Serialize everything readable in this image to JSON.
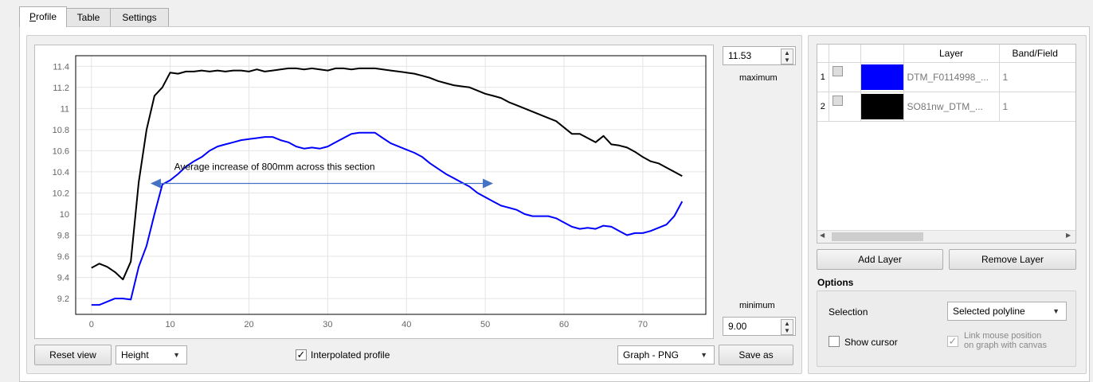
{
  "tabs": [
    {
      "label_prefix": "P",
      "label_rest": "rofile",
      "active": true
    },
    {
      "label": "Table",
      "active": false
    },
    {
      "label": "Settings",
      "active": false
    }
  ],
  "plot": {
    "y_ticks": [
      "11.4",
      "11.2",
      "11",
      "10.8",
      "10.6",
      "10.4",
      "10.2",
      "10",
      "9.8",
      "9.6",
      "9.4",
      "9.2"
    ],
    "x_ticks": [
      "0",
      "10",
      "20",
      "30",
      "40",
      "50",
      "60",
      "70"
    ],
    "annotation": "Average increase of 800mm across this section",
    "colors": {
      "series1": "#0000ff",
      "series2": "#000000",
      "arrow": "#4472c4"
    },
    "xlim": [
      -2,
      78
    ],
    "ylim": [
      9.05,
      11.5
    ]
  },
  "chart_data": {
    "type": "line",
    "ylim": [
      9.05,
      11.5
    ],
    "xlim": [
      -2,
      78
    ],
    "annotations": [
      "Average increase of 800mm across this section"
    ],
    "series": [
      {
        "name": "DTM_F0114998_...",
        "color": "#0000ff",
        "x": [
          0,
          1,
          2,
          3,
          4,
          5,
          6,
          7,
          8,
          9,
          10,
          11,
          12,
          13,
          14,
          15,
          16,
          17,
          18,
          19,
          20,
          21,
          22,
          23,
          24,
          25,
          26,
          27,
          28,
          29,
          30,
          31,
          32,
          33,
          34,
          35,
          36,
          37,
          38,
          39,
          40,
          41,
          42,
          43,
          44,
          45,
          46,
          47,
          48,
          49,
          50,
          51,
          52,
          53,
          54,
          55,
          56,
          57,
          58,
          59,
          60,
          61,
          62,
          63,
          64,
          65,
          66,
          67,
          68,
          69,
          70,
          71,
          72,
          73,
          74,
          75
        ],
        "y": [
          9.14,
          9.14,
          9.17,
          9.2,
          9.2,
          9.19,
          9.5,
          9.7,
          10.0,
          10.28,
          10.32,
          10.38,
          10.45,
          10.5,
          10.54,
          10.6,
          10.64,
          10.66,
          10.68,
          10.7,
          10.71,
          10.72,
          10.73,
          10.73,
          10.7,
          10.68,
          10.64,
          10.62,
          10.63,
          10.62,
          10.64,
          10.68,
          10.72,
          10.76,
          10.77,
          10.77,
          10.77,
          10.72,
          10.67,
          10.64,
          10.61,
          10.58,
          10.54,
          10.48,
          10.43,
          10.38,
          10.34,
          10.3,
          10.26,
          10.2,
          10.16,
          10.12,
          10.08,
          10.06,
          10.04,
          10.0,
          9.98,
          9.98,
          9.98,
          9.96,
          9.92,
          9.88,
          9.86,
          9.87,
          9.86,
          9.89,
          9.88,
          9.84,
          9.8,
          9.82,
          9.82,
          9.84,
          9.87,
          9.9,
          9.98,
          10.12
        ]
      },
      {
        "name": "SO81nw_DTM_...",
        "color": "#000000",
        "x": [
          0,
          1,
          2,
          3,
          4,
          5,
          6,
          7,
          8,
          9,
          10,
          11,
          12,
          13,
          14,
          15,
          16,
          17,
          18,
          19,
          20,
          21,
          22,
          23,
          24,
          25,
          26,
          27,
          28,
          29,
          30,
          31,
          32,
          33,
          34,
          35,
          36,
          37,
          38,
          39,
          40,
          41,
          42,
          43,
          44,
          45,
          46,
          47,
          48,
          49,
          50,
          51,
          52,
          53,
          54,
          55,
          56,
          57,
          58,
          59,
          60,
          61,
          62,
          63,
          64,
          65,
          66,
          67,
          68,
          69,
          70,
          71,
          72,
          73,
          74,
          75
        ],
        "y": [
          9.49,
          9.53,
          9.5,
          9.45,
          9.38,
          9.55,
          10.3,
          10.8,
          11.12,
          11.2,
          11.34,
          11.33,
          11.35,
          11.35,
          11.36,
          11.35,
          11.36,
          11.35,
          11.36,
          11.36,
          11.35,
          11.37,
          11.35,
          11.36,
          11.37,
          11.38,
          11.38,
          11.37,
          11.38,
          11.37,
          11.36,
          11.38,
          11.38,
          11.37,
          11.38,
          11.38,
          11.38,
          11.37,
          11.36,
          11.35,
          11.34,
          11.33,
          11.31,
          11.29,
          11.26,
          11.24,
          11.22,
          11.21,
          11.2,
          11.17,
          11.14,
          11.12,
          11.1,
          11.06,
          11.03,
          11.0,
          10.97,
          10.94,
          10.91,
          10.88,
          10.82,
          10.76,
          10.76,
          10.72,
          10.68,
          10.74,
          10.66,
          10.65,
          10.63,
          10.59,
          10.54,
          10.5,
          10.48,
          10.44,
          10.4,
          10.36
        ]
      }
    ]
  },
  "maximum": {
    "value": "11.53",
    "label": "maximum"
  },
  "minimum": {
    "value": "9.00",
    "label": "minimum"
  },
  "bottom_bar": {
    "reset_view": "Reset view",
    "height_combo": "Height",
    "interpolated": "Interpolated profile",
    "interpolated_checked": true,
    "export_combo": "Graph - PNG",
    "save_as": "Save as"
  },
  "layers": {
    "headers": [
      "Layer",
      "Band/Field"
    ],
    "rows": [
      {
        "index": "1",
        "color": "#0000ff",
        "name": "DTM_F0114998_...",
        "band": "1"
      },
      {
        "index": "2",
        "color": "#000000",
        "name": "SO81nw_DTM_...",
        "band": "1"
      }
    ],
    "add_layer": "Add Layer",
    "remove_layer": "Remove Layer"
  },
  "options": {
    "title": "Options",
    "selection_label": "Selection",
    "selection_value": "Selected polyline",
    "show_cursor": "Show cursor",
    "link_mouse_line1": "Link mouse position",
    "link_mouse_line2": "on graph with canvas"
  }
}
